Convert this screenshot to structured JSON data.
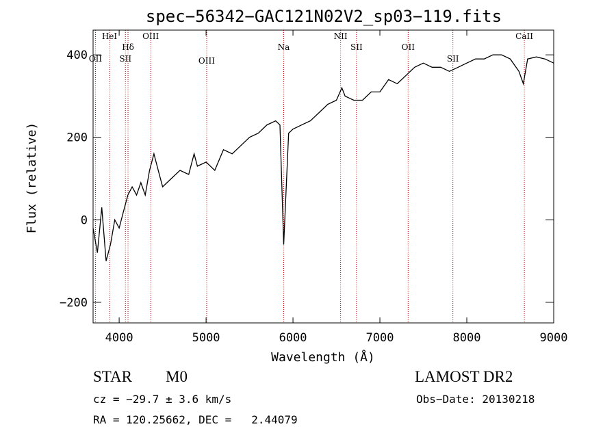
{
  "chart_data": {
    "type": "line",
    "title": "spec−56342−GAC121N02V2_sp03−119.fits",
    "xlabel": "Wavelength (Å)",
    "ylabel": "Flux (relative)",
    "xlim": [
      3700,
      9000
    ],
    "ylim": [
      -250,
      460
    ],
    "x_ticks": [
      4000,
      5000,
      6000,
      7000,
      8000,
      9000
    ],
    "y_ticks": [
      -200,
      0,
      200,
      400
    ],
    "y_tick_labels": [
      "−200",
      "0",
      "200",
      "400"
    ],
    "grid": false,
    "line_color": "#000000",
    "marker_color": "#c00000",
    "series": [
      {
        "x": [
          3700,
          3750,
          3800,
          3850,
          3900,
          3950,
          4000,
          4050,
          4100,
          4150,
          4200,
          4250,
          4300,
          4350,
          4400,
          4450,
          4500,
          4600,
          4700,
          4800,
          4862,
          4900,
          5000,
          5100,
          5200,
          5300,
          5400,
          5500,
          5600,
          5700,
          5800,
          5850,
          5893,
          5950,
          6000,
          6100,
          6200,
          6300,
          6400,
          6500,
          6563,
          6600,
          6700,
          6800,
          6900,
          7000,
          7100,
          7200,
          7300,
          7400,
          7500,
          7600,
          7700,
          7800,
          7900,
          8000,
          8100,
          8200,
          8300,
          8400,
          8500,
          8600,
          8650,
          8700,
          8800,
          8900,
          9000
        ],
        "y": [
          -20,
          -80,
          30,
          -100,
          -60,
          0,
          -20,
          20,
          60,
          80,
          60,
          90,
          60,
          120,
          160,
          120,
          80,
          100,
          120,
          110,
          160,
          130,
          140,
          120,
          170,
          160,
          180,
          200,
          210,
          230,
          240,
          230,
          -60,
          210,
          220,
          230,
          240,
          260,
          280,
          290,
          320,
          300,
          290,
          290,
          310,
          310,
          340,
          330,
          350,
          370,
          380,
          370,
          370,
          360,
          370,
          380,
          390,
          390,
          400,
          400,
          390,
          360,
          330,
          390,
          395,
          390,
          380
        ]
      }
    ],
    "lines": [
      {
        "label": "OII",
        "wavelength": 3727
      },
      {
        "label": "HeI",
        "wavelength": 3889
      },
      {
        "label": "Hδ",
        "wavelength": 4102
      },
      {
        "label": "SII",
        "wavelength": 4072
      },
      {
        "label": "OIII",
        "wavelength": 4363
      },
      {
        "label": "OIII",
        "wavelength": 5007
      },
      {
        "label": "Na",
        "wavelength": 5893
      },
      {
        "label": "NII",
        "wavelength": 6548
      },
      {
        "label": "SII",
        "wavelength": 6731
      },
      {
        "label": "OII",
        "wavelength": 7325
      },
      {
        "label": "SII",
        "wavelength": 7840
      },
      {
        "label": "CaII",
        "wavelength": 8662
      }
    ]
  },
  "info": {
    "object_class": "STAR",
    "subclass": "M0",
    "survey": "LAMOST DR2",
    "redshift": "cz = −29.7 ± 3.6 km/s",
    "obs_date": "Obs−Date: 20130218",
    "coords": "RA = 120.25662, DEC =   2.44079"
  }
}
